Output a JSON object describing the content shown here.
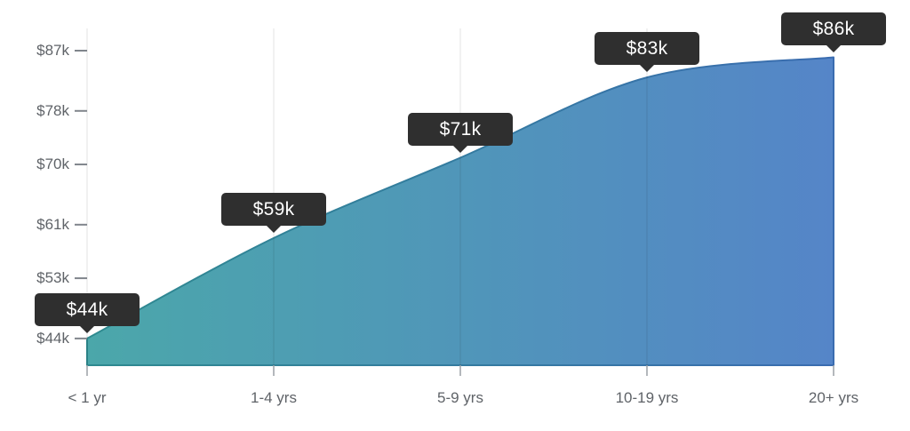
{
  "chart_data": {
    "type": "area",
    "categories": [
      "< 1 yr",
      "1-4 yrs",
      "5-9 yrs",
      "10-19 yrs",
      "20+ yrs"
    ],
    "values": [
      44,
      59,
      71,
      83,
      86
    ],
    "point_labels": [
      "$44k",
      "$59k",
      "$71k",
      "$83k",
      "$86k"
    ],
    "y_tick_labels": [
      "$87k",
      "$78k",
      "$70k",
      "$61k",
      "$53k",
      "$44k"
    ],
    "y_tick_values": [
      87,
      78,
      70,
      61,
      53,
      44
    ],
    "ylim": [
      40,
      87
    ],
    "grid": "vertical",
    "legend": "none",
    "colors": {
      "fill_start": "#4BA7AA",
      "fill_end": "#5585C8",
      "stroke_start": "#2E8A8F",
      "stroke_end": "#3A6CB0",
      "gridline": "rgba(0,0,0,0.11)",
      "y_tick": "#80858C",
      "x_tick": "#9AA0A6",
      "axis_text": "#5F6368",
      "tooltip_bg": "#2F2F2F",
      "tooltip_text": "#FFFFFF"
    }
  }
}
